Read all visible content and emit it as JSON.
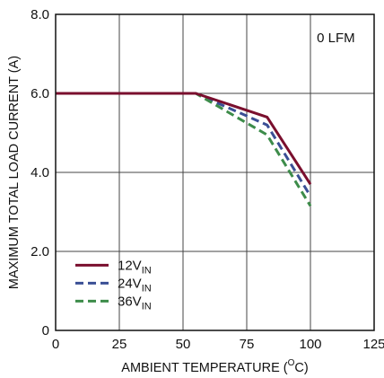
{
  "chart_data": {
    "type": "line",
    "xlabel": "AMBIENT TEMPERATURE (",
    "xlabel_sup": "O",
    "xlabel_tail": "C)",
    "ylabel": "MAXIMUM TOTAL LOAD CURRENT (A)",
    "annotation": "0 LFM",
    "xlim": [
      0,
      125
    ],
    "ylim": [
      0,
      8
    ],
    "xticks": [
      0,
      25,
      50,
      75,
      100,
      125
    ],
    "xtick_labels": [
      "0",
      "25",
      "50",
      "75",
      "100",
      "125"
    ],
    "yticks": [
      0,
      2,
      4,
      6,
      8
    ],
    "ytick_labels": [
      "0",
      "2.0",
      "4.0",
      "6.0",
      "8.0"
    ],
    "grid": true,
    "legend_position": "bottom-left",
    "series": [
      {
        "name": "12V",
        "name_sub": "IN",
        "color": "#7a0f2e",
        "dash": "solid",
        "x": [
          0,
          55,
          83,
          100
        ],
        "y": [
          6.0,
          6.0,
          5.4,
          3.7
        ]
      },
      {
        "name": "24V",
        "name_sub": "IN",
        "color": "#3a4f95",
        "dash": "dashed",
        "x": [
          0,
          55,
          83,
          100
        ],
        "y": [
          6.0,
          6.0,
          5.2,
          3.4
        ]
      },
      {
        "name": "36V",
        "name_sub": "IN",
        "color": "#3d8c4a",
        "dash": "dashed",
        "x": [
          0,
          55,
          83,
          100
        ],
        "y": [
          6.0,
          6.0,
          4.95,
          3.15
        ]
      }
    ]
  }
}
